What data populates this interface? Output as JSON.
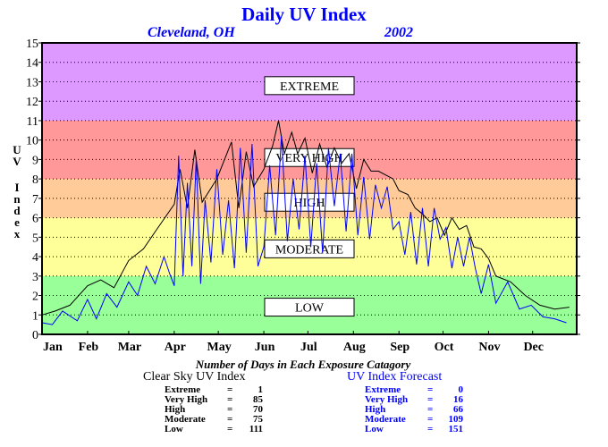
{
  "chart_data": {
    "type": "line",
    "title": "Daily UV Index",
    "subtitle_location": "Cleveland, OH",
    "subtitle_year": "2002",
    "ylabel": "UV Index",
    "xlabel": "",
    "ylim": [
      0,
      15
    ],
    "yticks": [
      "0",
      "1",
      "2",
      "3",
      "4",
      "5",
      "6",
      "7",
      "8",
      "9",
      "10",
      "11",
      "12",
      "13",
      "14",
      "15"
    ],
    "xticks": [
      "Jan",
      "Feb",
      "Mar",
      "Apr",
      "May",
      "Jun",
      "Jul",
      "Aug",
      "Sep",
      "Oct",
      "Nov",
      "Dec"
    ],
    "grid": true,
    "bands": [
      {
        "label": "LOW",
        "from": 0,
        "to": 3,
        "color": "#99ff99"
      },
      {
        "label": "MODERATE",
        "from": 3,
        "to": 6,
        "color": "#ffff99"
      },
      {
        "label": "HIGH",
        "from": 6,
        "to": 8,
        "color": "#ffcc99"
      },
      {
        "label": "VERY HIGH",
        "from": 8,
        "to": 11,
        "color": "#ff9999"
      },
      {
        "label": "EXTREME",
        "from": 11,
        "to": 15,
        "color": "#dd99ff"
      }
    ],
    "series": [
      {
        "color": "#000000",
        "x": [
          1,
          10,
          20,
          32,
          41,
          50,
          60,
          70,
          80,
          91,
          95,
          100,
          105,
          110,
          120,
          130,
          135,
          140,
          145,
          152,
          158,
          162,
          166,
          171,
          175,
          180,
          185,
          190,
          195,
          200,
          205,
          210,
          215,
          220,
          225,
          230,
          240,
          244,
          250,
          255,
          260,
          265,
          270,
          275,
          280,
          285,
          290,
          295,
          300,
          305,
          310,
          320,
          330,
          340,
          350,
          360
        ],
        "values": [
          1.0,
          1.2,
          1.5,
          2.5,
          2.8,
          2.4,
          3.8,
          4.4,
          5.5,
          6.7,
          8.5,
          6.5,
          9.5,
          6.8,
          8.0,
          9.9,
          6.5,
          9.4,
          7.6,
          8.5,
          9.7,
          11.0,
          9.3,
          10.4,
          9.3,
          10.1,
          8.3,
          9.8,
          8.6,
          9.6,
          8.8,
          9.3,
          7.5,
          9.0,
          8.4,
          8.4,
          8.0,
          7.4,
          7.2,
          6.5,
          6.2,
          5.8,
          6.0,
          5.1,
          6.0,
          5.4,
          5.6,
          4.5,
          4.4,
          3.9,
          3.0,
          2.7,
          2.0,
          1.5,
          1.3,
          1.4
        ]
      },
      {
        "color": "#0000ff",
        "x": [
          1,
          8,
          15,
          25,
          32,
          38,
          45,
          52,
          60,
          66,
          72,
          78,
          84,
          88,
          91,
          94,
          97,
          100,
          103,
          106,
          109,
          112,
          116,
          120,
          124,
          128,
          132,
          136,
          140,
          144,
          148,
          152,
          156,
          160,
          164,
          168,
          172,
          176,
          180,
          184,
          188,
          192,
          196,
          200,
          204,
          208,
          212,
          216,
          220,
          224,
          228,
          232,
          236,
          240,
          244,
          248,
          252,
          256,
          260,
          264,
          268,
          272,
          276,
          280,
          284,
          288,
          292,
          296,
          300,
          305,
          310,
          318,
          326,
          334,
          342,
          350,
          358
        ],
        "values": [
          0.6,
          0.5,
          1.2,
          0.7,
          1.8,
          0.8,
          2.1,
          1.4,
          2.7,
          2.0,
          3.5,
          2.6,
          4.0,
          3.1,
          2.5,
          9.2,
          3.0,
          7.8,
          3.5,
          9.1,
          2.6,
          6.9,
          3.7,
          8.5,
          4.1,
          6.9,
          3.4,
          9.6,
          4.2,
          9.8,
          3.5,
          4.5,
          8.7,
          5.1,
          10.2,
          4.8,
          8.0,
          5.4,
          9.2,
          4.5,
          8.8,
          4.2,
          9.6,
          6.6,
          9.3,
          5.3,
          9.3,
          5.1,
          8.1,
          4.9,
          7.7,
          6.5,
          7.6,
          5.4,
          5.8,
          4.1,
          6.3,
          3.6,
          6.5,
          3.5,
          6.5,
          4.9,
          5.5,
          3.4,
          5.0,
          3.5,
          5.0,
          3.4,
          2.1,
          3.6,
          1.6,
          2.7,
          1.3,
          1.5,
          0.9,
          0.8,
          0.6
        ]
      }
    ]
  },
  "stats_title": "Number of Days in Each Exposure Catagory",
  "clear_sky": {
    "title": "Clear Sky UV Index",
    "rows": [
      {
        "label": "Extreme",
        "value": "1"
      },
      {
        "label": "Very High",
        "value": "85"
      },
      {
        "label": "High",
        "value": "70"
      },
      {
        "label": "Moderate",
        "value": "75"
      },
      {
        "label": "Low",
        "value": "111"
      }
    ]
  },
  "forecast": {
    "title": "UV Index Forecast",
    "rows": [
      {
        "label": "Extreme",
        "value": "0"
      },
      {
        "label": "Very High",
        "value": "16"
      },
      {
        "label": "High",
        "value": "66"
      },
      {
        "label": "Moderate",
        "value": "109"
      },
      {
        "label": "Low",
        "value": "151"
      }
    ]
  }
}
